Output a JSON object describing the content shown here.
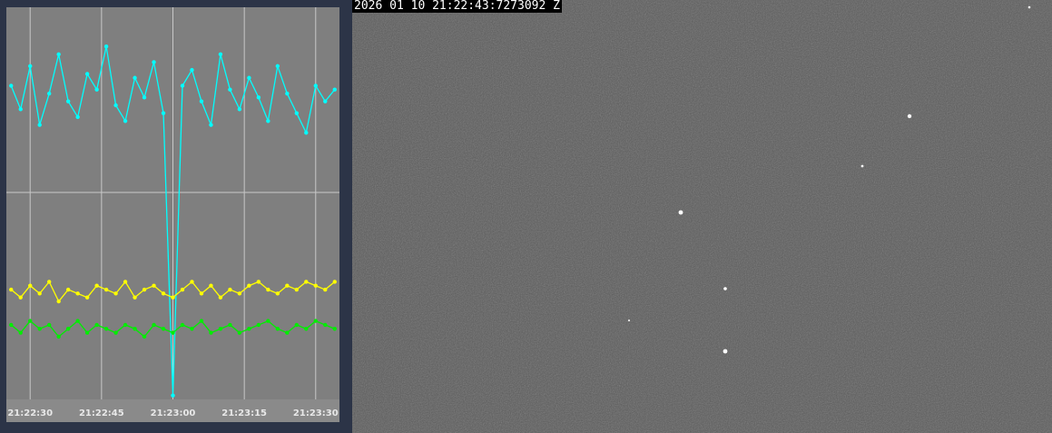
{
  "chart_data": {
    "type": "line",
    "x": [
      "21:22:26",
      "21:22:28",
      "21:22:30",
      "21:22:32",
      "21:22:34",
      "21:22:36",
      "21:22:38",
      "21:22:40",
      "21:22:42",
      "21:22:44",
      "21:22:46",
      "21:22:48",
      "21:22:50",
      "21:22:52",
      "21:22:54",
      "21:22:56",
      "21:22:58",
      "21:23:00",
      "21:23:02",
      "21:23:04",
      "21:23:06",
      "21:23:08",
      "21:23:10",
      "21:23:12",
      "21:23:14",
      "21:23:16",
      "21:23:18",
      "21:23:20",
      "21:23:22",
      "21:23:24",
      "21:23:26",
      "21:23:28",
      "21:23:30",
      "21:23:32",
      "21:23:34"
    ],
    "series": [
      {
        "color": "#00ffff",
        "values": [
          80,
          74,
          85,
          70,
          78,
          88,
          76,
          72,
          83,
          79,
          90,
          75,
          71,
          82,
          77,
          86,
          73,
          1,
          80,
          84,
          76,
          70,
          88,
          79,
          74,
          82,
          77,
          71,
          85,
          78,
          73,
          68,
          80,
          76,
          79
        ]
      },
      {
        "color": "#ffff00",
        "values": [
          28,
          26,
          29,
          27,
          30,
          25,
          28,
          27,
          26,
          29,
          28,
          27,
          30,
          26,
          28,
          29,
          27,
          26,
          28,
          30,
          27,
          29,
          26,
          28,
          27,
          29,
          30,
          28,
          27,
          29,
          28,
          30,
          29,
          28,
          30
        ]
      },
      {
        "color": "#00ee00",
        "values": [
          19,
          17,
          20,
          18,
          19,
          16,
          18,
          20,
          17,
          19,
          18,
          17,
          19,
          18,
          16,
          19,
          18,
          17,
          19,
          18,
          20,
          17,
          18,
          19,
          17,
          18,
          19,
          20,
          18,
          17,
          19,
          18,
          20,
          19,
          18
        ]
      }
    ],
    "xlim": [
      "21:22:25",
      "21:23:35"
    ],
    "xticks": [
      "21:22:30",
      "21:22:45",
      "21:23:00",
      "21:23:15",
      "21:23:30"
    ],
    "ylim": [
      0,
      100
    ],
    "grid": true
  },
  "image": {
    "timestamp": "2026 01 10 21:22:43:7273092 Z"
  }
}
